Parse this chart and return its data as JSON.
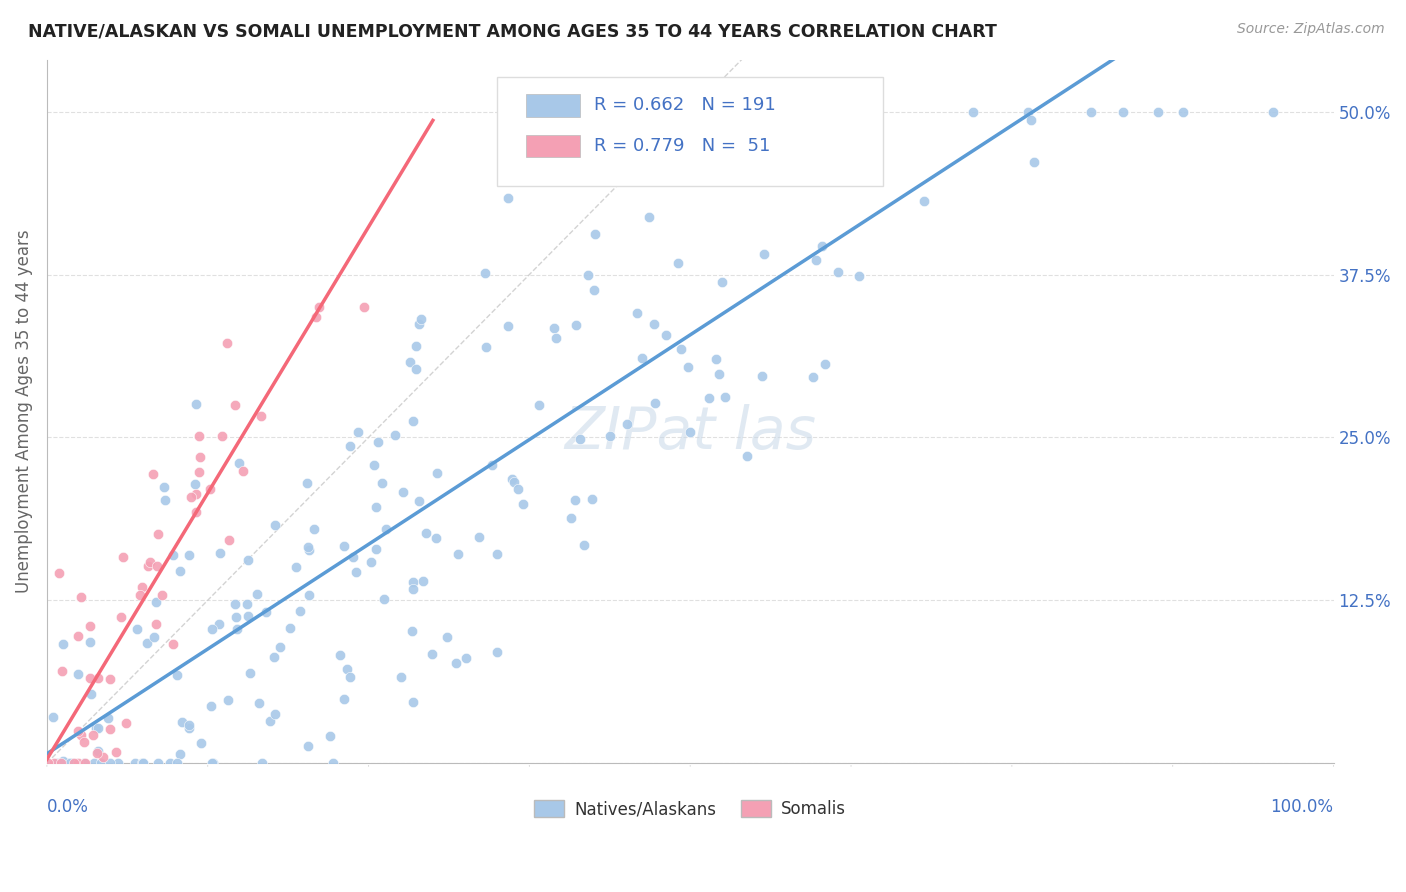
{
  "title": "NATIVE/ALASKAN VS SOMALI UNEMPLOYMENT AMONG AGES 35 TO 44 YEARS CORRELATION CHART",
  "source": "Source: ZipAtlas.com",
  "ylabel": "Unemployment Among Ages 35 to 44 years",
  "xlim": [
    0.0,
    1.0
  ],
  "ylim": [
    0.0,
    0.54
  ],
  "native_R": 0.662,
  "native_N": 191,
  "somali_R": 0.779,
  "somali_N": 51,
  "native_color": "#a8c8e8",
  "somali_color": "#f4a0b4",
  "native_line_color": "#5b9bd5",
  "somali_line_color": "#f46878",
  "diagonal_color": "#c8c8c8",
  "background_color": "#ffffff",
  "grid_color": "#e0e0e0",
  "ytick_values": [
    0.0,
    0.125,
    0.25,
    0.375,
    0.5
  ],
  "ytick_labels": [
    "",
    "12.5%",
    "25.0%",
    "37.5%",
    "50.0%"
  ],
  "tick_color": "#4472c4",
  "title_color": "#222222",
  "source_color": "#999999",
  "ylabel_color": "#666666",
  "legend_label_color": "#4472c4"
}
